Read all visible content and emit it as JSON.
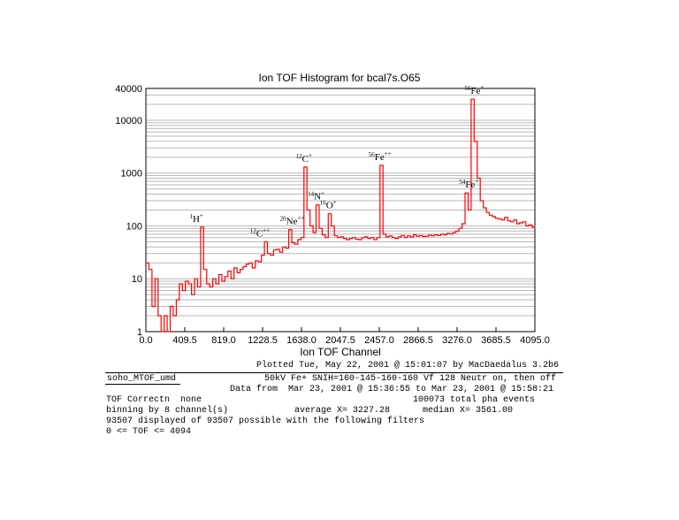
{
  "chart_data": {
    "type": "line",
    "title": "Ion TOF Histogram for bcal7s.O65",
    "xlabel": "Ion TOF Channel",
    "ylabel": "",
    "xlim": [
      0,
      4095
    ],
    "ylim": [
      1,
      40000
    ],
    "yscale": "log",
    "grid": true,
    "x_ticks": [
      "0.0",
      "409.5",
      "819.0",
      "1228.5",
      "1638.0",
      "2047.5",
      "2457.0",
      "2866.5",
      "3276.0",
      "3685.5",
      "4095.0"
    ],
    "y_ticks": [
      "1",
      "10",
      "100",
      "1000",
      "10000",
      "40000"
    ],
    "line_color": "#ff0000",
    "series": [
      {
        "x": [
          0,
          32,
          64,
          96,
          128,
          160,
          192,
          224,
          256,
          288,
          320,
          352,
          384,
          416,
          448,
          480,
          512,
          544,
          576,
          608,
          640,
          672,
          704,
          736,
          768,
          800,
          832,
          864,
          896,
          928,
          960,
          992,
          1024,
          1056,
          1088,
          1120,
          1152,
          1184,
          1216,
          1248,
          1280,
          1312,
          1344,
          1376,
          1408,
          1440,
          1472,
          1504,
          1536,
          1568,
          1600,
          1632,
          1664,
          1696,
          1728,
          1760,
          1792,
          1824,
          1856,
          1888,
          1920,
          1952,
          1984,
          2016,
          2048,
          2080,
          2112,
          2144,
          2176,
          2208,
          2240,
          2272,
          2304,
          2336,
          2368,
          2400,
          2432,
          2464,
          2496,
          2528,
          2560,
          2592,
          2624,
          2656,
          2688,
          2720,
          2752,
          2784,
          2816,
          2848,
          2880,
          2912,
          2944,
          2976,
          3008,
          3040,
          3072,
          3104,
          3136,
          3168,
          3200,
          3232,
          3264,
          3296,
          3328,
          3360,
          3392,
          3424,
          3456,
          3488,
          3520,
          3552,
          3584,
          3616,
          3648,
          3680,
          3712,
          3744,
          3776,
          3808,
          3840,
          3872,
          3904,
          3936,
          3968,
          4000,
          4032,
          4064,
          4094
        ],
        "y": [
          20,
          15,
          3,
          10,
          2,
          1,
          2,
          1,
          3,
          2,
          4,
          8,
          6,
          9,
          8,
          5,
          10,
          7,
          95,
          15,
          8,
          7,
          10,
          8,
          12,
          9,
          11,
          14,
          10,
          16,
          13,
          15,
          17,
          19,
          20,
          16,
          22,
          21,
          28,
          50,
          30,
          28,
          35,
          36,
          32,
          40,
          38,
          85,
          48,
          45,
          55,
          60,
          1300,
          200,
          100,
          75,
          250,
          90,
          68,
          60,
          170,
          100,
          65,
          60,
          62,
          58,
          55,
          58,
          60,
          56,
          55,
          60,
          62,
          58,
          60,
          55,
          60,
          1400,
          70,
          62,
          65,
          60,
          58,
          62,
          66,
          60,
          65,
          62,
          68,
          64,
          66,
          63,
          64,
          67,
          65,
          68,
          66,
          70,
          68,
          72,
          70,
          75,
          80,
          90,
          110,
          420,
          200,
          25000,
          4000,
          800,
          300,
          220,
          180,
          160,
          150,
          140,
          135,
          130,
          145,
          125,
          120,
          130,
          110,
          115,
          120,
          100,
          105,
          95,
          90
        ],
        "x_is_channel_edge": false
      }
    ],
    "annotations": [
      {
        "mass": "1",
        "ion": "H",
        "charge": "+",
        "x": 532,
        "y": 95
      },
      {
        "mass": "12",
        "ion": "C",
        "charge": "++",
        "x": 1200,
        "y": 50
      },
      {
        "mass": "20",
        "ion": "Ne",
        "charge": "++",
        "x": 1540,
        "y": 85
      },
      {
        "mass": "12",
        "ion": "C",
        "charge": "+",
        "x": 1664,
        "y": 1300
      },
      {
        "mass": "14",
        "ion": "N",
        "charge": "+",
        "x": 1792,
        "y": 250
      },
      {
        "mass": "16",
        "ion": "O",
        "charge": "+",
        "x": 1920,
        "y": 170
      },
      {
        "mass": "56",
        "ion": "Fe",
        "charge": "++",
        "x": 2464,
        "y": 1400
      },
      {
        "mass": "54",
        "ion": "Fe",
        "charge": "+",
        "x": 3400,
        "y": 420
      },
      {
        "mass": "56",
        "ion": "Fe",
        "charge": "+",
        "x": 3456,
        "y": 25000
      }
    ]
  },
  "footer": {
    "plotted": "Plotted Tue, May 22, 2001 @ 15:01:07 by MacDaedalus 3.2b6",
    "instrument": "soho_MTOF_umd",
    "run_desc": "50kV Fe+ SNIH=160-145-160-160 Vf 128 Neutr on, then off",
    "data_from": "Data from  Mar 23, 2001 @ 15:36:55 to Mar 23, 2001 @ 15:58:21",
    "tof_correction": "TOF Correctn  none",
    "total_events": "100073 total pha events",
    "binning": "binning by 8 channel(s)",
    "average": "average X= 3227.28",
    "median": "median X= 3561.00",
    "displayed": "93507 displayed of 93507 possible with the following filters",
    "filter": "0 <= TOF <= 4094"
  }
}
